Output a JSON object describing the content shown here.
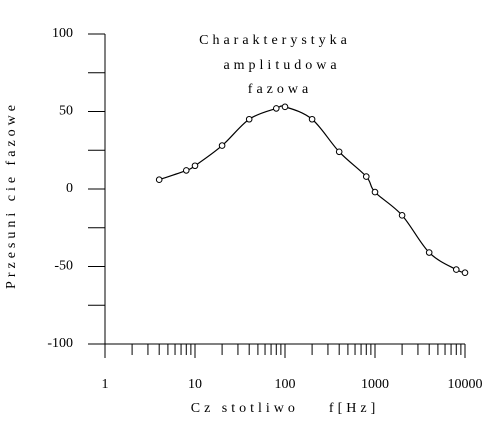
{
  "chart_data": {
    "type": "line",
    "title": [
      "Charakterystyka",
      "amplitudowa",
      "fazowa"
    ],
    "xlabel": "Cz stotliwo    f[Hz]",
    "ylabel": "Przesuni cie fazowe",
    "xscale": "log",
    "xlim": [
      1,
      10000
    ],
    "ylim": [
      -100,
      100
    ],
    "xticks": [
      1,
      10,
      100,
      1000,
      10000
    ],
    "xminorticks": [
      2,
      3,
      4,
      5,
      6,
      7,
      8,
      9,
      20,
      30,
      40,
      50,
      60,
      70,
      80,
      90,
      200,
      300,
      400,
      500,
      600,
      700,
      800,
      900,
      2000,
      3000,
      4000,
      5000,
      6000,
      7000,
      8000,
      9000
    ],
    "yticks": [
      -100,
      -50,
      0,
      50,
      100
    ],
    "yminorticks": [
      -75,
      -25,
      25,
      75
    ],
    "color": "#000000",
    "x": [
      4,
      8,
      10,
      20,
      40,
      80,
      100,
      200,
      400,
      800,
      1000,
      2000,
      4000,
      8000,
      10000
    ],
    "values": [
      6,
      12,
      15,
      28,
      45,
      52,
      53,
      45,
      24,
      8,
      -2,
      -17,
      -41,
      -52,
      -54
    ]
  }
}
